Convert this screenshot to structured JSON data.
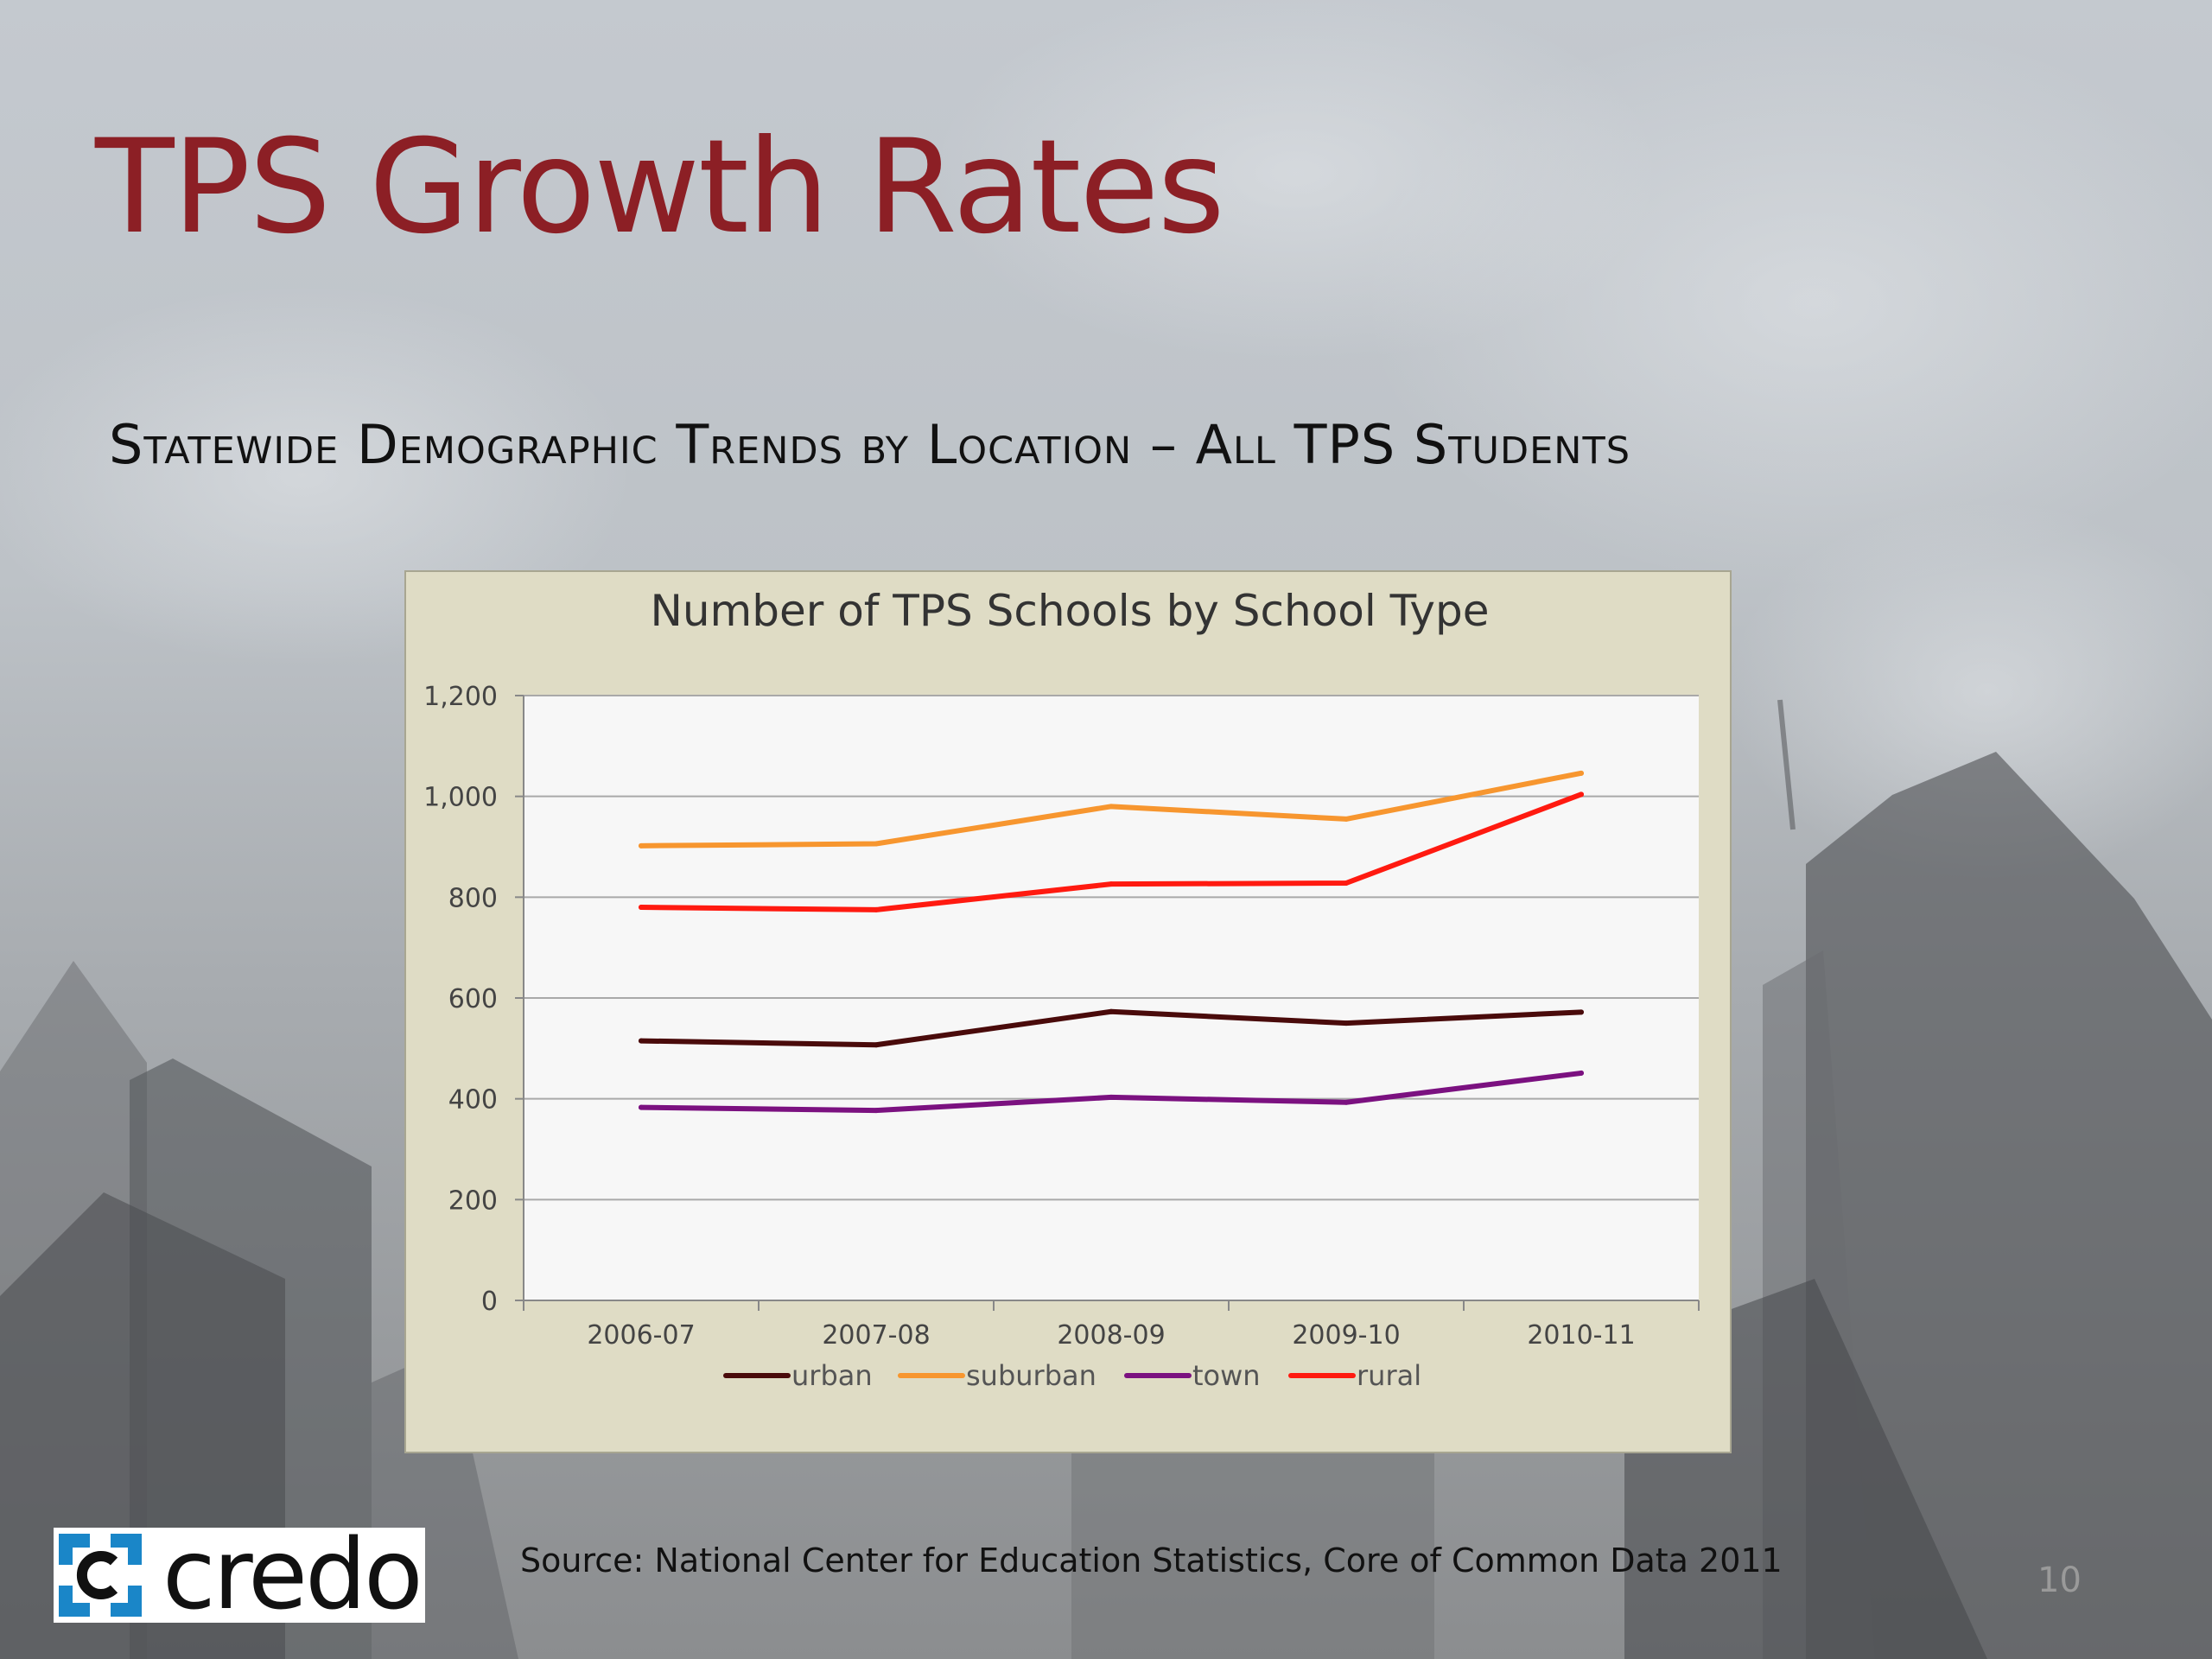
{
  "slide": {
    "title": "TPS Growth Rates",
    "subtitle": "Statewide Demographic Trends by Location – All TPS Students",
    "source": "Source:  National Center for Education Statistics, Core of Common Data 2011",
    "page_number": "10",
    "logo_text": "credo",
    "logo_icon": "credo-bracket-c-logo",
    "colors": {
      "title": "#8c1f25",
      "chart_background": "#dfdcc5",
      "plot_background": "#f7f7f7",
      "logo_accent": "#1a86c8"
    }
  },
  "chart_data": {
    "type": "line",
    "title": "Number of TPS Schools by School Type",
    "categories": [
      "2006-07",
      "2007-08",
      "2008-09",
      "2009-10",
      "2010-11"
    ],
    "series": [
      {
        "name": "urban",
        "color": "#4a0b0b",
        "values": [
          515,
          507,
          573,
          550,
          572
        ]
      },
      {
        "name": "suburban",
        "color": "#f7962f",
        "values": [
          902,
          906,
          980,
          955,
          1046
        ]
      },
      {
        "name": "town",
        "color": "#7b1180",
        "values": [
          383,
          377,
          403,
          393,
          451
        ]
      },
      {
        "name": "rural",
        "color": "#ff1a10",
        "values": [
          780,
          775,
          826,
          828,
          1004
        ]
      }
    ],
    "yticks": [
      "0",
      "200",
      "400",
      "600",
      "800",
      "1,000",
      "1,200"
    ],
    "ylim": [
      0,
      1200
    ],
    "xlabel": "",
    "ylabel": "",
    "grid": true,
    "legend_position": "bottom"
  }
}
